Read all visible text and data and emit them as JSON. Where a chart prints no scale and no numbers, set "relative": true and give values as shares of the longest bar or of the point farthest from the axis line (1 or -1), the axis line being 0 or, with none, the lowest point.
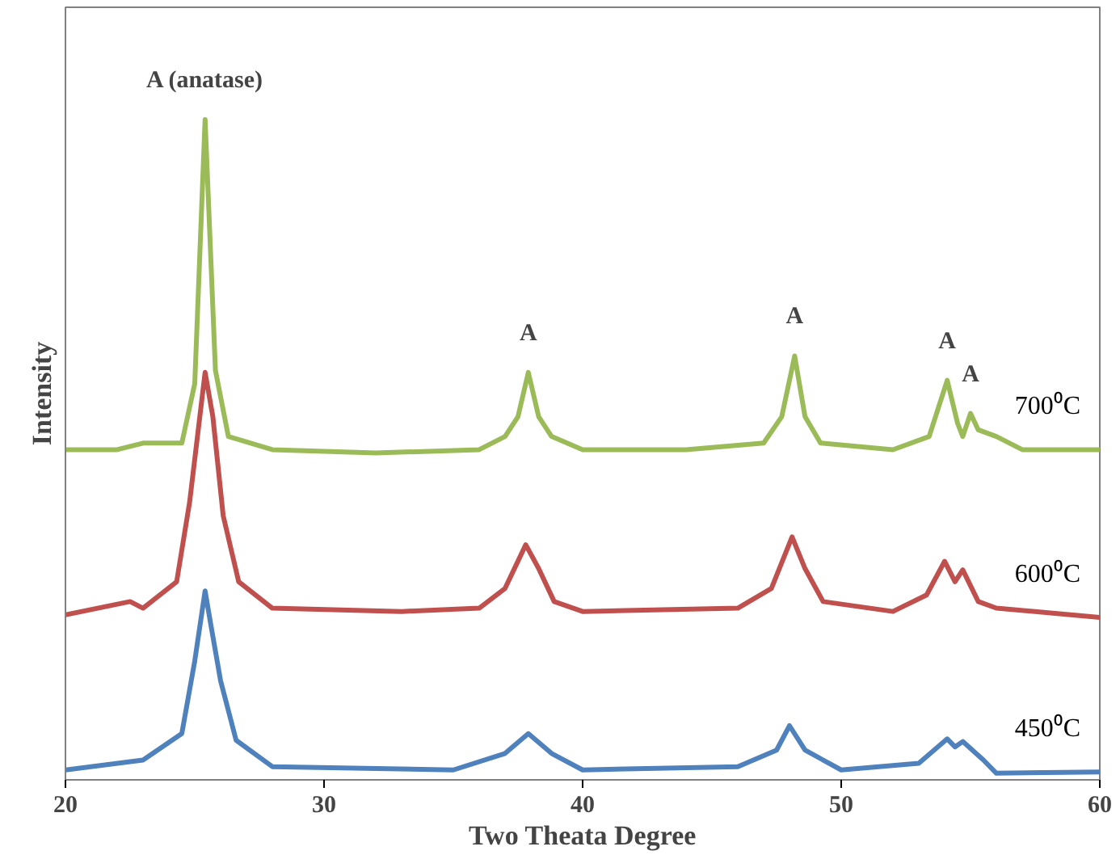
{
  "chart_data": {
    "type": "line",
    "relative": true,
    "xlabel": "Two Theata Degree",
    "ylabel": "Intensity",
    "xlim": [
      20,
      60
    ],
    "xticks": [
      20,
      30,
      40,
      50,
      60
    ],
    "grid": false,
    "marker": "none",
    "line_style": "solid",
    "annotations": [
      {
        "text": "A (anatase)",
        "x": 25.4,
        "y": 1.0
      },
      {
        "text": "A",
        "x": 37.9,
        "y": 0.617
      },
      {
        "text": "A",
        "x": 48.2,
        "y": 0.642
      },
      {
        "text": "A",
        "x": 54.1,
        "y": 0.605
      },
      {
        "text": "A",
        "x": 55.0,
        "y": 0.555
      }
    ],
    "series": [
      {
        "name": "700⁰C",
        "color": "#9bbb59",
        "x": [
          20,
          22,
          23,
          24.5,
          25.0,
          25.4,
          25.8,
          26.3,
          28,
          32,
          36,
          37.0,
          37.5,
          37.9,
          38.3,
          38.8,
          40,
          44,
          47,
          47.7,
          48.2,
          48.6,
          49.2,
          52,
          53.4,
          54.1,
          54.5,
          54.7,
          55.0,
          55.3,
          56,
          57,
          60
        ],
        "values": [
          0.5,
          0.5,
          0.51,
          0.51,
          0.6,
          1.0,
          0.62,
          0.52,
          0.5,
          0.495,
          0.5,
          0.52,
          0.55,
          0.617,
          0.55,
          0.52,
          0.5,
          0.5,
          0.51,
          0.55,
          0.642,
          0.55,
          0.51,
          0.5,
          0.52,
          0.605,
          0.54,
          0.52,
          0.555,
          0.53,
          0.52,
          0.5,
          0.5
        ]
      },
      {
        "name": "600⁰C",
        "color": "#c0504d",
        "x": [
          20,
          22.5,
          23,
          24.3,
          24.8,
          25.4,
          25.7,
          26.1,
          26.7,
          28,
          33,
          36,
          37.0,
          37.8,
          38.3,
          38.9,
          40,
          46,
          47.3,
          48.1,
          48.6,
          49.3,
          52,
          53.3,
          54.0,
          54.4,
          54.7,
          55.3,
          56,
          60
        ],
        "values": [
          0.25,
          0.27,
          0.26,
          0.3,
          0.42,
          0.617,
          0.55,
          0.4,
          0.3,
          0.26,
          0.255,
          0.26,
          0.29,
          0.356,
          0.32,
          0.27,
          0.255,
          0.26,
          0.29,
          0.368,
          0.32,
          0.27,
          0.255,
          0.28,
          0.331,
          0.3,
          0.318,
          0.27,
          0.26,
          0.246
        ]
      },
      {
        "name": "450⁰C",
        "color": "#4f81bd",
        "x": [
          20,
          23,
          24.5,
          25.0,
          25.4,
          25.6,
          26.0,
          26.6,
          28,
          35,
          37.0,
          37.9,
          38.8,
          40,
          46,
          47.5,
          48.0,
          48.6,
          50,
          53,
          54.1,
          54.4,
          54.7,
          55.5,
          56,
          60
        ],
        "values": [
          0.015,
          0.03,
          0.07,
          0.18,
          0.286,
          0.24,
          0.15,
          0.06,
          0.02,
          0.015,
          0.04,
          0.07,
          0.04,
          0.015,
          0.02,
          0.045,
          0.082,
          0.045,
          0.015,
          0.025,
          0.062,
          0.05,
          0.058,
          0.03,
          0.01,
          0.012
        ]
      }
    ]
  }
}
